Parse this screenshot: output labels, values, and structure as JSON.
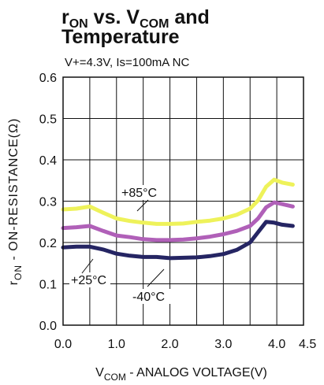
{
  "chart_data": {
    "type": "line",
    "title": {
      "line1_main": "r",
      "line1_sub": "ON",
      "line1_mid": " vs. V",
      "line1_sub2": "COM",
      "line1_end": " and",
      "line2": "Temperature"
    },
    "subtitle": "V+=4.3V, Is=100mA NC",
    "xlabel": {
      "main": "V",
      "sub": "COM",
      "rest": " - ANALOG VOLTAGE(V)"
    },
    "ylabel": {
      "main": "r",
      "sub": "ON",
      "rest": " - ON-RESISTANCE(Ω)"
    },
    "xlim": [
      0,
      4.5
    ],
    "ylim": [
      0,
      0.6
    ],
    "x_ticks": [
      "0.0",
      "1.0",
      "2.0",
      "3.0",
      "4.0",
      "4.5"
    ],
    "y_ticks": [
      "0.0",
      "0.1",
      "0.2",
      "0.3",
      "0.4",
      "0.5",
      "0.6"
    ],
    "grid": true,
    "series": [
      {
        "name": "+85°C",
        "color": "#eef25a",
        "x": [
          0.0,
          0.25,
          0.5,
          0.75,
          1.0,
          1.25,
          1.5,
          1.75,
          2.0,
          2.25,
          2.5,
          2.75,
          3.0,
          3.25,
          3.5,
          3.65,
          3.8,
          3.95,
          4.1,
          4.3
        ],
        "y": [
          0.28,
          0.282,
          0.287,
          0.272,
          0.258,
          0.252,
          0.248,
          0.245,
          0.245,
          0.246,
          0.25,
          0.253,
          0.258,
          0.267,
          0.282,
          0.302,
          0.335,
          0.352,
          0.345,
          0.34
        ]
      },
      {
        "name": "+25°C",
        "color": "#b060b8",
        "x": [
          0.0,
          0.25,
          0.5,
          0.75,
          1.0,
          1.25,
          1.5,
          1.75,
          2.0,
          2.25,
          2.5,
          2.75,
          3.0,
          3.25,
          3.5,
          3.65,
          3.8,
          3.95,
          4.1,
          4.3
        ],
        "y": [
          0.235,
          0.237,
          0.24,
          0.228,
          0.217,
          0.213,
          0.208,
          0.206,
          0.206,
          0.207,
          0.21,
          0.214,
          0.22,
          0.228,
          0.24,
          0.258,
          0.285,
          0.297,
          0.293,
          0.287
        ]
      },
      {
        "name": "-40°C",
        "color": "#252563",
        "x": [
          0.0,
          0.25,
          0.5,
          0.75,
          1.0,
          1.25,
          1.5,
          1.75,
          2.0,
          2.25,
          2.5,
          2.75,
          3.0,
          3.25,
          3.5,
          3.65,
          3.8,
          3.95,
          4.1,
          4.3
        ],
        "y": [
          0.188,
          0.19,
          0.19,
          0.183,
          0.173,
          0.168,
          0.165,
          0.165,
          0.162,
          0.163,
          0.164,
          0.167,
          0.172,
          0.182,
          0.2,
          0.225,
          0.25,
          0.248,
          0.243,
          0.24
        ]
      }
    ],
    "annotations": [
      {
        "text": "+85°C",
        "series": 0
      },
      {
        "text": "+25°C",
        "series": 1
      },
      {
        "text": "-40°C",
        "series": 2
      }
    ]
  }
}
